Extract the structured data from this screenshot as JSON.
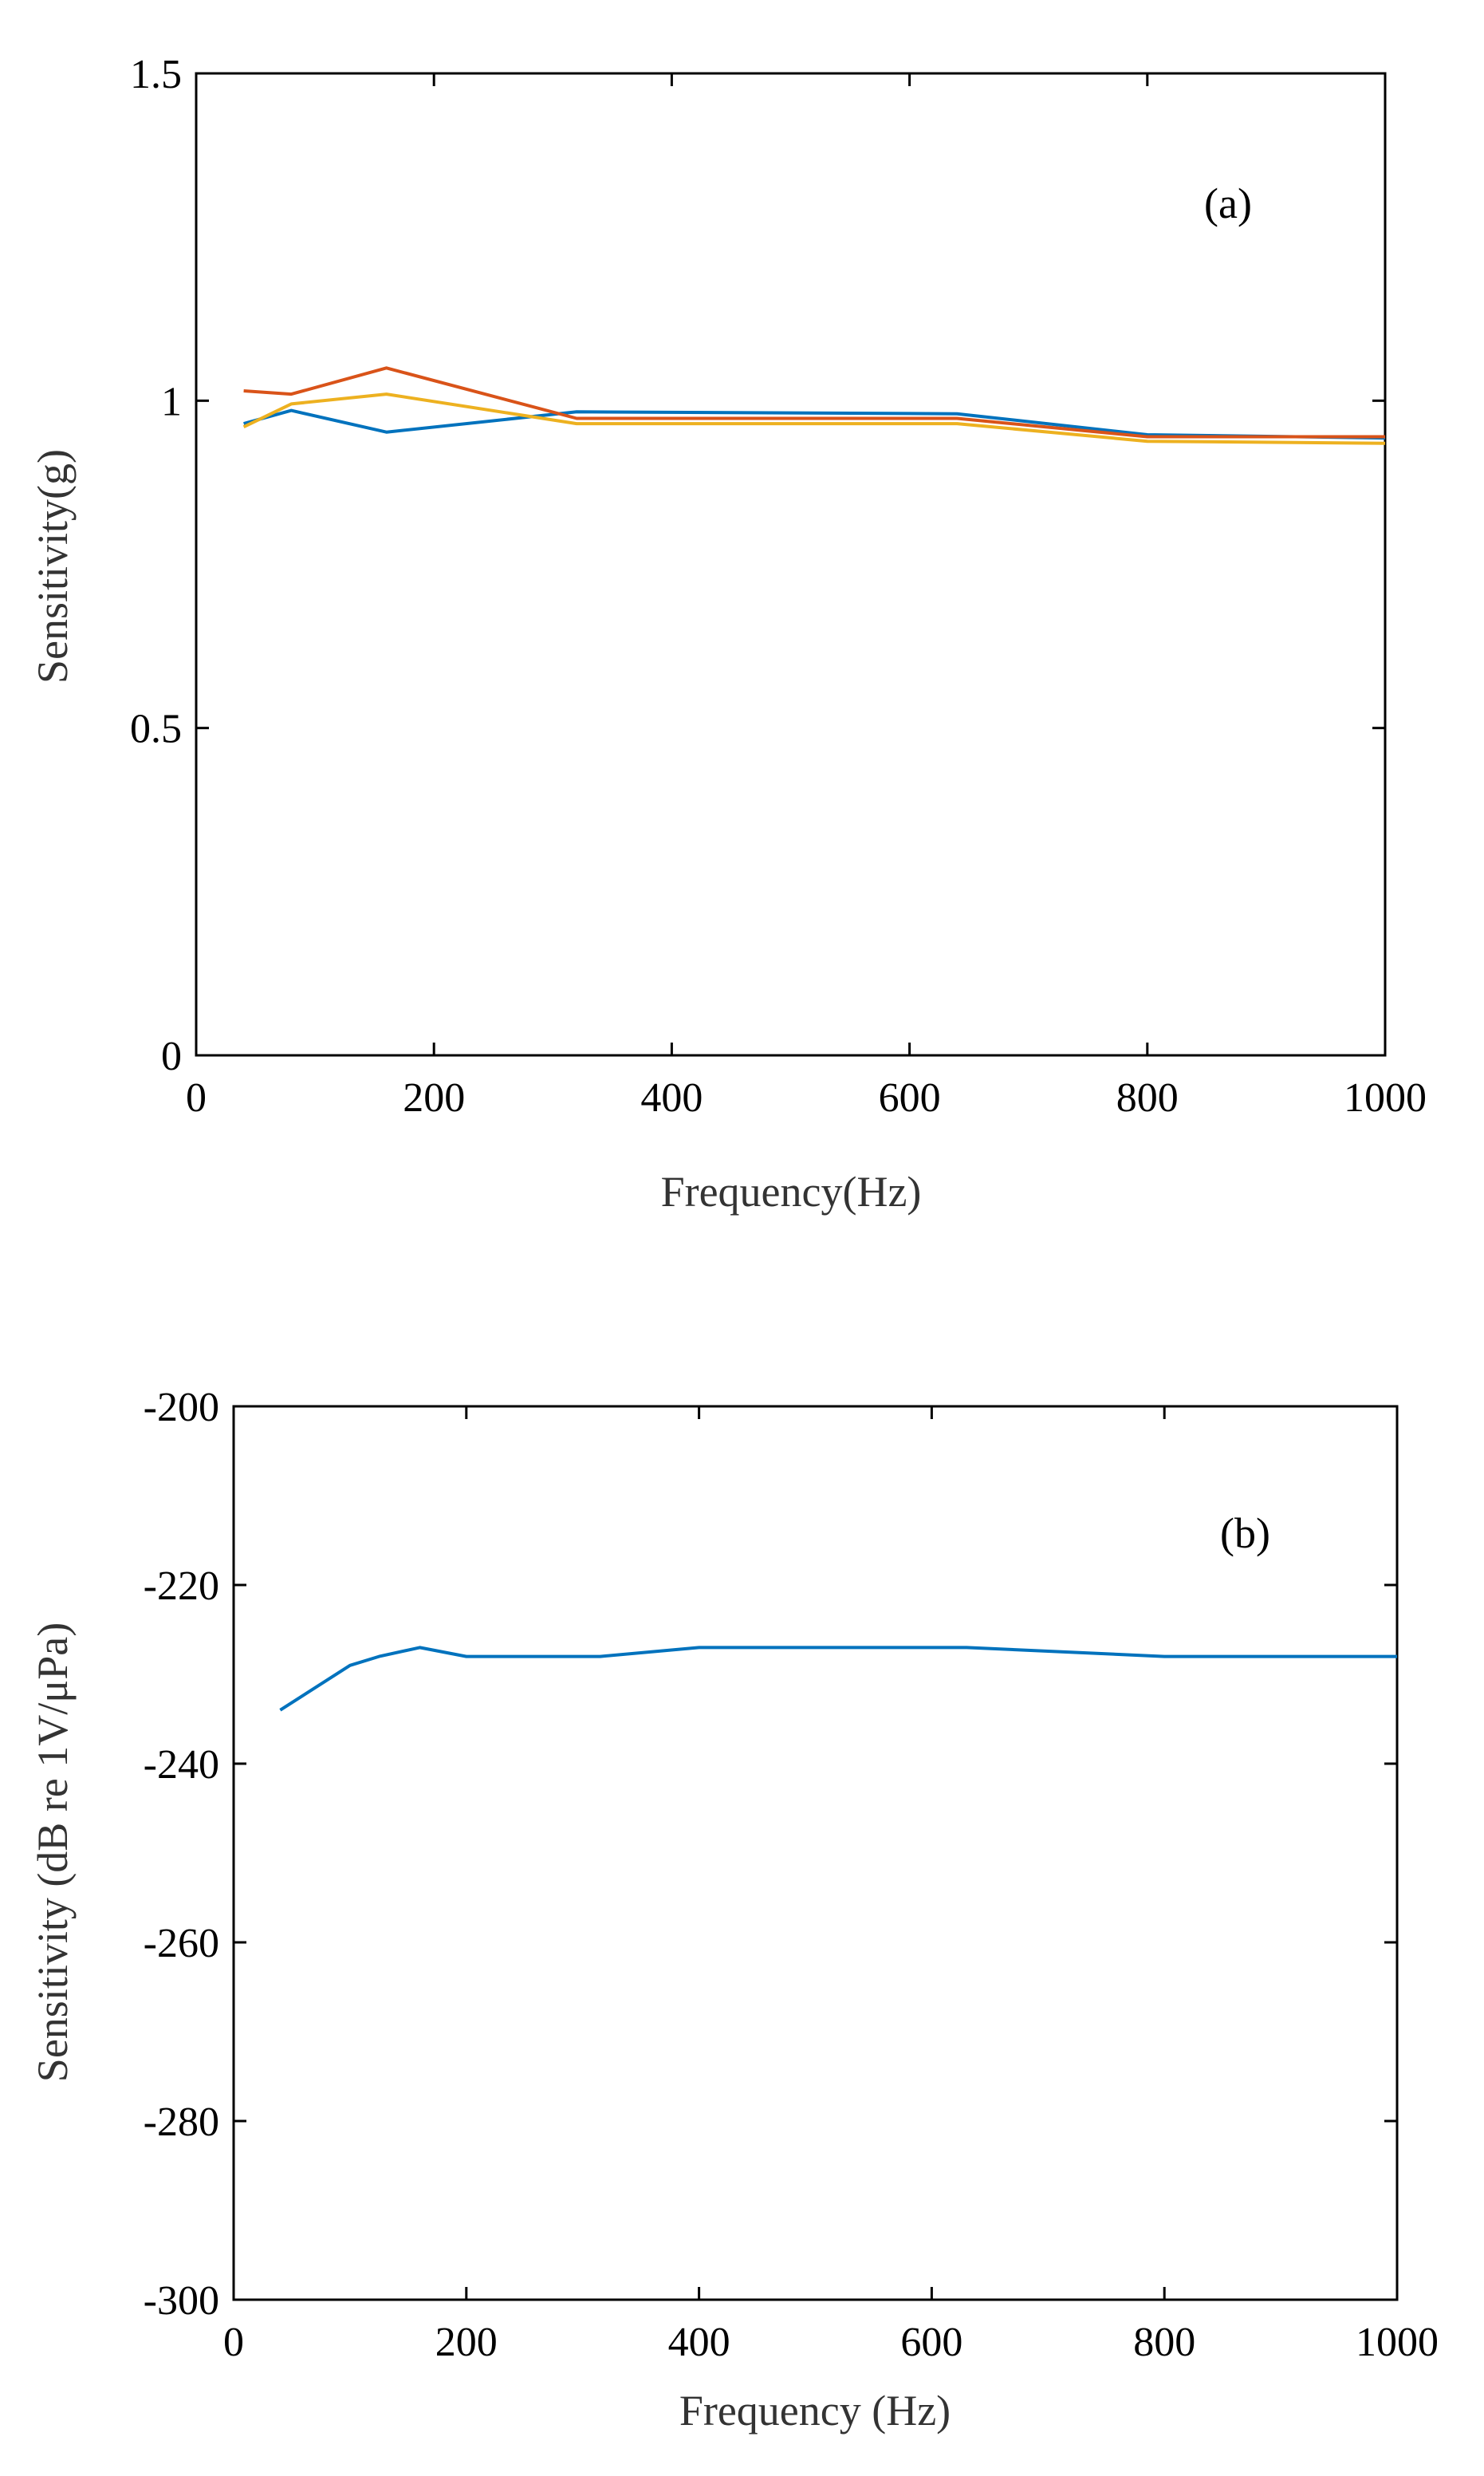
{
  "chart_data": [
    {
      "type": "line",
      "panel_label": "(a)",
      "xlabel": "Frequency(Hz)",
      "ylabel": "Sensitivity(g)",
      "xlim": [
        0,
        1000
      ],
      "ylim": [
        0,
        1.5
      ],
      "xticks": [
        0,
        200,
        400,
        600,
        800,
        1000
      ],
      "yticks": [
        0,
        0.5,
        1,
        1.5
      ],
      "xtick_labels": [
        "0",
        "200",
        "400",
        "600",
        "800",
        "1000"
      ],
      "ytick_labels": [
        "0",
        "0.5",
        "1",
        "1.5"
      ],
      "grid": false,
      "series": [
        {
          "color": "#0072BD",
          "points": [
            [
              40,
              0.965
            ],
            [
              80,
              0.985
            ],
            [
              160,
              0.952
            ],
            [
              320,
              0.983
            ],
            [
              640,
              0.98
            ],
            [
              800,
              0.948
            ],
            [
              1000,
              0.943
            ]
          ]
        },
        {
          "color": "#D95319",
          "points": [
            [
              40,
              1.015
            ],
            [
              80,
              1.01
            ],
            [
              160,
              1.05
            ],
            [
              320,
              0.973
            ],
            [
              640,
              0.973
            ],
            [
              800,
              0.945
            ],
            [
              1000,
              0.945
            ]
          ]
        },
        {
          "color": "#EDB120",
          "points": [
            [
              40,
              0.96
            ],
            [
              80,
              0.995
            ],
            [
              160,
              1.01
            ],
            [
              320,
              0.965
            ],
            [
              640,
              0.965
            ],
            [
              800,
              0.938
            ],
            [
              1000,
              0.935
            ]
          ]
        }
      ]
    },
    {
      "type": "line",
      "panel_label": "(b)",
      "xlabel": "Frequency (Hz)",
      "ylabel": "Sensitivity (dB re 1V/μPa)",
      "xlim": [
        0,
        1000
      ],
      "ylim": [
        -300,
        -200
      ],
      "xticks": [
        0,
        200,
        400,
        600,
        800,
        1000
      ],
      "yticks": [
        -300,
        -280,
        -260,
        -240,
        -220,
        -200
      ],
      "xtick_labels": [
        "0",
        "200",
        "400",
        "600",
        "800",
        "1000"
      ],
      "ytick_labels": [
        "-300",
        "-280",
        "-260",
        "-240",
        "-220",
        "-200"
      ],
      "grid": false,
      "series": [
        {
          "color": "#0072BD",
          "points": [
            [
              40,
              -234
            ],
            [
              100,
              -229
            ],
            [
              125,
              -228
            ],
            [
              160,
              -227
            ],
            [
              200,
              -228
            ],
            [
              315,
              -228
            ],
            [
              400,
              -227
            ],
            [
              630,
              -227
            ],
            [
              800,
              -228
            ],
            [
              1000,
              -228
            ]
          ]
        }
      ]
    }
  ]
}
